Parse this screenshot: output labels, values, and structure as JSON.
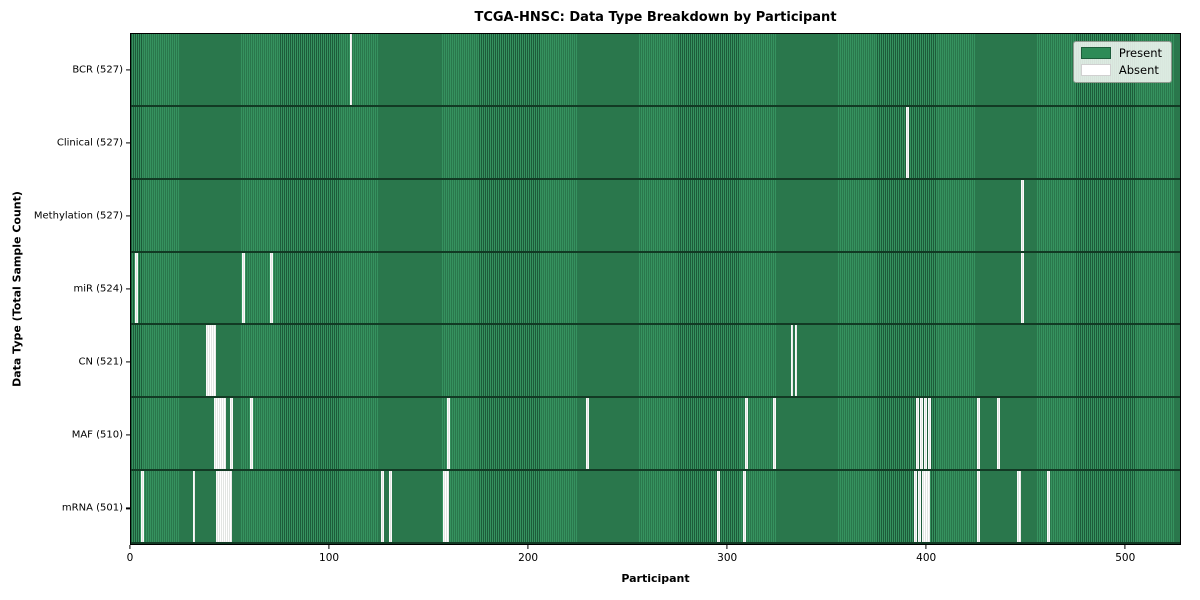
{
  "chart_data": {
    "type": "heatmap",
    "title": "TCGA-HNSC: Data Type Breakdown by Participant",
    "xlabel": "Participant",
    "ylabel": "Data Type (Total Sample Count)",
    "legend_position": "upper right",
    "legend_items": [
      {
        "label": "Present",
        "color": "#2e8b57",
        "border": "#1d5c3a"
      },
      {
        "label": "Absent",
        "color": "#ffffff",
        "border": "#d0d0d0"
      }
    ],
    "colors": {
      "present_fill": "#36925f",
      "present_edge": "#1d5c3a",
      "absent_fill": "#ffffff",
      "row_separator": "#123a24",
      "plot_border": "#000000"
    },
    "total_participants": 528,
    "xlim": [
      0,
      528
    ],
    "x_ticks": [
      0,
      100,
      200,
      300,
      400,
      500
    ],
    "grid": false,
    "rows": [
      {
        "id": "bcr",
        "label": "BCR (527)",
        "data_type": "BCR",
        "present_count": 527,
        "absent_participants": [
          110
        ]
      },
      {
        "id": "clinical",
        "label": "Clinical (527)",
        "data_type": "Clinical",
        "present_count": 527,
        "absent_participants": [
          390
        ]
      },
      {
        "id": "methylation",
        "label": "Methylation (527)",
        "data_type": "Methylation",
        "present_count": 527,
        "absent_participants": [
          448
        ]
      },
      {
        "id": "mir",
        "label": "miR (524)",
        "data_type": "miR",
        "present_count": 524,
        "absent_participants": [
          2,
          56,
          70,
          448
        ]
      },
      {
        "id": "cn",
        "label": "CN (521)",
        "data_type": "CN",
        "present_count": 521,
        "absent_participants": [
          38,
          39,
          40,
          41,
          42,
          332,
          334
        ]
      },
      {
        "id": "maf",
        "label": "MAF (510)",
        "data_type": "MAF",
        "present_count": 510,
        "absent_participants": [
          42,
          43,
          44,
          45,
          46,
          47,
          50,
          60,
          159,
          229,
          309,
          323,
          395,
          397,
          399,
          401,
          426,
          436
        ]
      },
      {
        "id": "mrna",
        "label": "mRNA (501)",
        "data_type": "mRNA",
        "present_count": 501,
        "absent_participants": [
          5,
          31,
          43,
          44,
          45,
          46,
          47,
          48,
          49,
          50,
          126,
          130,
          157,
          158,
          159,
          295,
          308,
          394,
          396,
          398,
          399,
          400,
          401,
          426,
          446,
          447,
          461
        ]
      }
    ]
  }
}
